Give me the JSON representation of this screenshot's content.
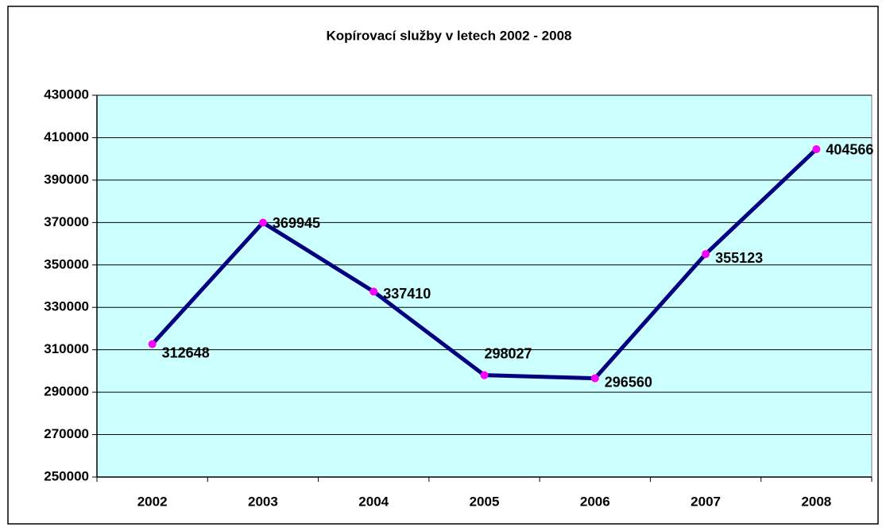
{
  "chart_data": {
    "type": "line",
    "title": "Kopírovací služby v letech 2002 - 2008",
    "categories": [
      "2002",
      "2003",
      "2004",
      "2005",
      "2006",
      "2007",
      "2008"
    ],
    "series": [
      {
        "name": "Kopírovací služby",
        "color": "#000080",
        "marker_color": "#ff00ff",
        "values": [
          312648,
          369945,
          337410,
          298027,
          296560,
          355123,
          404566
        ]
      }
    ],
    "ylim": [
      250000,
      430000
    ],
    "yticks": [
      250000,
      270000,
      290000,
      310000,
      330000,
      350000,
      370000,
      390000,
      410000,
      430000
    ],
    "grid": true,
    "plot_background": "#ccffff"
  }
}
